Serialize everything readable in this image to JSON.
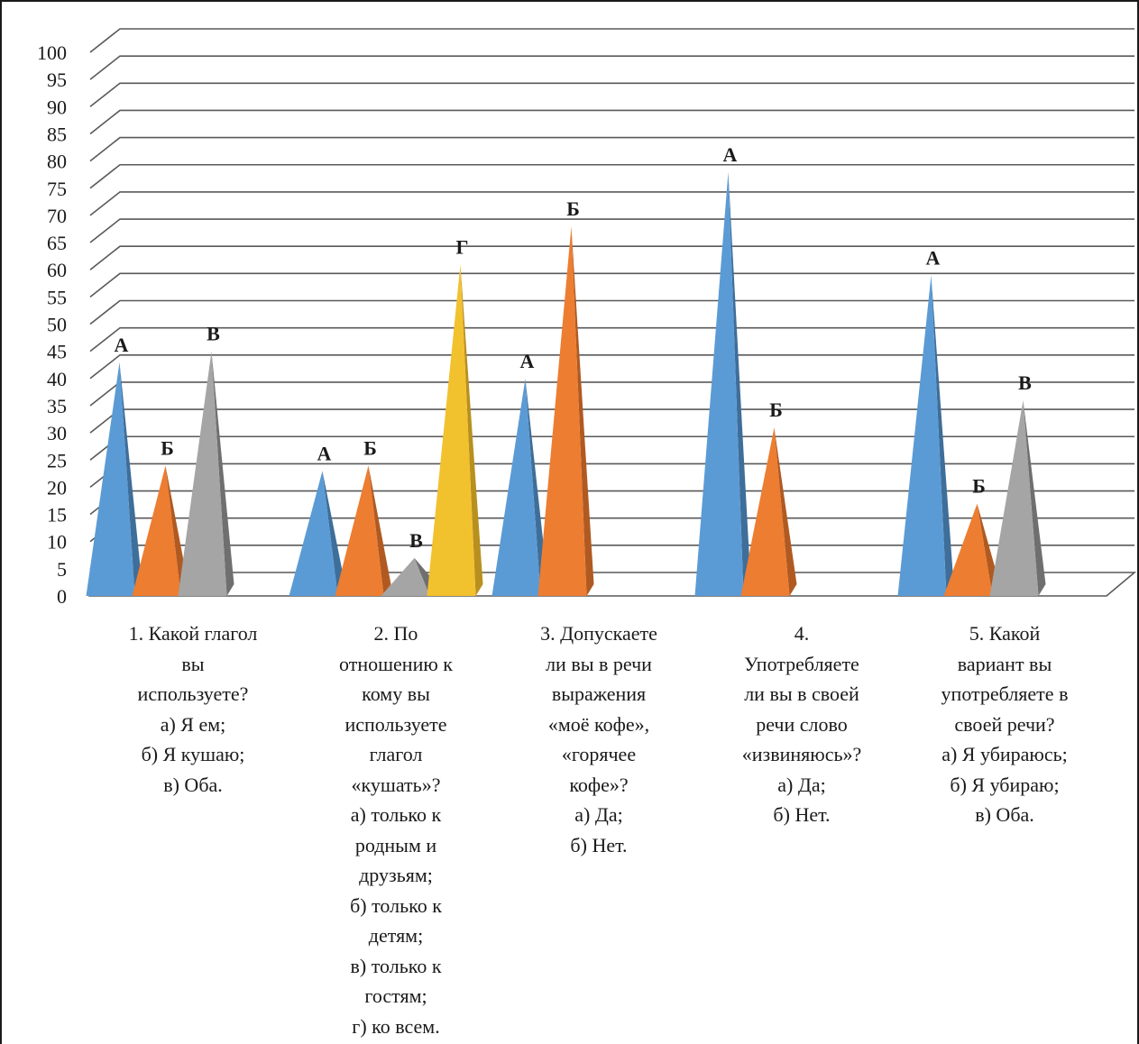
{
  "chart_data": {
    "type": "bar",
    "style": "3d-pyramid",
    "ylim": [
      0,
      100
    ],
    "y_ticks": [
      0,
      5,
      10,
      15,
      20,
      25,
      30,
      35,
      40,
      45,
      50,
      55,
      60,
      65,
      70,
      75,
      80,
      85,
      90,
      95,
      100
    ],
    "grid": true,
    "categories": [
      "1. Какой глагол\nвы\nиспользуете?\nа) Я ем;\nб) Я кушаю;\nв) Оба.",
      "2. По\nотношению к\nкому вы\nиспользуете\nглагол\n«кушать»?\nа) только к\nродным и\nдрузьям;\nб) только к\nдетям;\nв) только к\nгостям;\nг) ко всем.",
      "3. Допускаете\nли вы в речи\nвыражения\n«моё кофе»,\n«горячее\nкофе»?\nа) Да;\nб) Нет.",
      "4.\nУпотребляете\nли вы в своей\nречи слово\n«извиняюсь»?\nа) Да;\nб) Нет.",
      "5. Какой\nвариант вы\nупотребляете в\nсвоей речи?\nа) Я убираюсь;\nб) Я убираю;\nв) Оба."
    ],
    "groups": [
      {
        "bars": [
          {
            "label": "А",
            "value": 40,
            "color": "blue"
          },
          {
            "label": "Б",
            "value": 21,
            "color": "orange"
          },
          {
            "label": "В",
            "value": 42,
            "color": "gray"
          }
        ]
      },
      {
        "bars": [
          {
            "label": "А",
            "value": 20,
            "color": "blue"
          },
          {
            "label": "Б",
            "value": 21,
            "color": "orange"
          },
          {
            "label": "В",
            "value": 4,
            "color": "gray"
          },
          {
            "label": "Г",
            "value": 58,
            "color": "yellow"
          }
        ]
      },
      {
        "bars": [
          {
            "label": "А",
            "value": 37,
            "color": "blue"
          },
          {
            "label": "Б",
            "value": 65,
            "color": "orange"
          }
        ]
      },
      {
        "bars": [
          {
            "label": "А",
            "value": 75,
            "color": "blue"
          },
          {
            "label": "Б",
            "value": 28,
            "color": "orange"
          }
        ]
      },
      {
        "bars": [
          {
            "label": "А",
            "value": 56,
            "color": "blue"
          },
          {
            "label": "Б",
            "value": 14,
            "color": "orange"
          },
          {
            "label": "В",
            "value": 33,
            "color": "gray"
          }
        ]
      }
    ],
    "colors": {
      "blue": {
        "light": "#5b9bd5",
        "dark": "#3e6e9a"
      },
      "orange": {
        "light": "#ed7d31",
        "dark": "#b05a22"
      },
      "gray": {
        "light": "#a5a5a5",
        "dark": "#6f6f6f"
      },
      "yellow": {
        "light": "#f2c12e",
        "dark": "#b8901f"
      }
    },
    "grid_color": "#595959",
    "text_color": "#1a1a1a"
  }
}
